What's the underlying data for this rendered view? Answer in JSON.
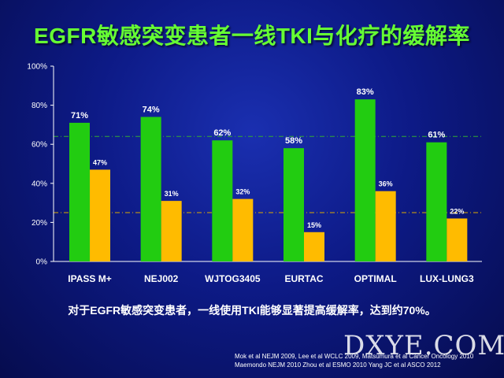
{
  "slide": {
    "title": "EGFR敏感突变患者一线TKI与化疗的缓解率",
    "conclusion": "对于EGFR敏感突变患者，一线使用TKI能够显著提高缓解率，达到约70%。",
    "references": [
      "Mok et al NEJM 2009, Lee et al WCLC 2009, Matsumura et al Cancer Oncology 2010",
      "Maemondo NEJM 2010  Zhou et al ESMO 2010  Yang JC et al  ASCO 2012"
    ],
    "watermark": "DXYE.COM"
  },
  "chart_data": {
    "type": "bar",
    "categories": [
      "IPASS M+",
      "NEJ002",
      "WJTOG3405",
      "EURTAC",
      "OPTIMAL",
      "LUX-LUNG3"
    ],
    "series": [
      {
        "values": [
          71,
          74,
          62,
          58,
          83,
          61
        ],
        "labels": [
          "71%",
          "74%",
          "62%",
          "58%",
          "83%",
          "61%"
        ],
        "color": "#22cc11"
      },
      {
        "values": [
          47,
          31,
          32,
          15,
          36,
          22
        ],
        "labels": [
          "47%",
          "31%",
          "32%",
          "15%",
          "36%",
          "22%"
        ],
        "color": "#ffbb00"
      }
    ],
    "ylim": [
      0,
      100
    ],
    "yticks": [
      0,
      20,
      40,
      60,
      80,
      100
    ],
    "ytick_labels": [
      "0%",
      "20%",
      "40%",
      "60%",
      "80%",
      "100%"
    ],
    "reference_lines": [
      {
        "value": 64,
        "color": "#33aa33",
        "style": "dash-dot"
      },
      {
        "value": 25,
        "color": "#ddaa00",
        "style": "dash-dot"
      }
    ],
    "grid": false,
    "legend": "none"
  }
}
